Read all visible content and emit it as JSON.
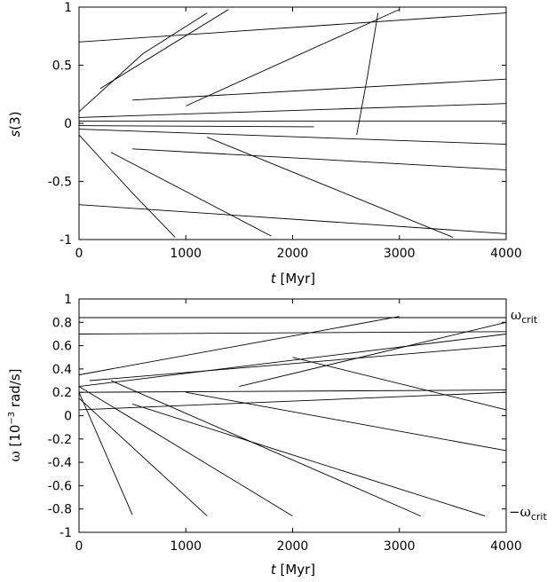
{
  "chart_data": [
    {
      "type": "line",
      "panel": "top",
      "ylabel_italic": "s",
      "ylabel_rest": "(3)",
      "xlabel_italic": "t",
      "xlabel_rest": " [Myr]",
      "xlim": [
        0,
        4000
      ],
      "ylim": [
        -1,
        1
      ],
      "x_ticks": [
        0,
        1000,
        2000,
        3000,
        4000
      ],
      "y_ticks": [
        -1,
        -0.5,
        0,
        0.5,
        1
      ],
      "x_tick_labels": [
        "0",
        "1000",
        "2000",
        "3000",
        "4000"
      ],
      "y_tick_labels": [
        "-1",
        "-0.5",
        "0",
        "0.5",
        "1"
      ],
      "grid": false,
      "legend": "none",
      "line_color": "#000000",
      "series_description": "Many individual black track segments; values drift toward |s(3)| = 1 over time, with a sparse band near s(3) = 0.",
      "series": [
        {
          "values": [
            [
              0,
              0.02
            ],
            [
              4000,
              0.02
            ]
          ]
        },
        {
          "values": [
            [
              0,
              -0.02
            ],
            [
              2200,
              -0.03
            ]
          ]
        },
        {
          "values": [
            [
              0,
              0.05
            ],
            [
              4000,
              0.17
            ]
          ]
        },
        {
          "values": [
            [
              0,
              -0.05
            ],
            [
              4000,
              -0.18
            ]
          ]
        },
        {
          "values": [
            [
              0,
              0.1
            ],
            [
              600,
              0.6
            ],
            [
              1200,
              0.95
            ]
          ]
        },
        {
          "values": [
            [
              0,
              -0.1
            ],
            [
              500,
              -0.6
            ],
            [
              900,
              -0.98
            ]
          ]
        },
        {
          "values": [
            [
              200,
              0.3
            ],
            [
              1400,
              0.98
            ]
          ]
        },
        {
          "values": [
            [
              300,
              -0.25
            ],
            [
              1800,
              -0.97
            ]
          ]
        },
        {
          "values": [
            [
              1000,
              0.15
            ],
            [
              3000,
              0.98
            ]
          ]
        },
        {
          "values": [
            [
              1200,
              -0.12
            ],
            [
              3500,
              -0.98
            ]
          ]
        },
        {
          "values": [
            [
              2600,
              -0.1
            ],
            [
              2700,
              0.4
            ],
            [
              2800,
              0.95
            ]
          ]
        },
        {
          "values": [
            [
              0,
              0.7
            ],
            [
              4000,
              0.95
            ]
          ]
        },
        {
          "values": [
            [
              0,
              -0.7
            ],
            [
              4000,
              -0.95
            ]
          ]
        },
        {
          "values": [
            [
              500,
              0.2
            ],
            [
              4000,
              0.38
            ]
          ]
        },
        {
          "values": [
            [
              500,
              -0.22
            ],
            [
              4000,
              -0.4
            ]
          ]
        }
      ]
    },
    {
      "type": "line",
      "panel": "bottom",
      "ylabel_symbol": "ω",
      "ylabel_pre": " [10",
      "ylabel_sup": "−3",
      "ylabel_post": " rad/s]",
      "xlabel_italic": "t",
      "xlabel_rest": " [Myr]",
      "xlim": [
        0,
        4000
      ],
      "ylim": [
        -1,
        1
      ],
      "x_ticks": [
        0,
        1000,
        2000,
        3000,
        4000
      ],
      "y_ticks": [
        -1,
        -0.8,
        -0.6,
        -0.4,
        -0.2,
        0,
        0.2,
        0.4,
        0.6,
        0.8,
        1
      ],
      "x_tick_labels": [
        "0",
        "1000",
        "2000",
        "3000",
        "4000"
      ],
      "y_tick_labels": [
        "-1",
        "-0.8",
        "-0.6",
        "-0.4",
        "-0.2",
        "0",
        "0.2",
        "0.4",
        "0.6",
        "0.8",
        "1"
      ],
      "grid": false,
      "legend": "none",
      "line_color": "#000000",
      "annotations": [
        {
          "symbol": "ω",
          "sub": "crit",
          "y": 0.86
        },
        {
          "symbol": "−ω",
          "sub": "crit",
          "y": -0.86
        }
      ],
      "series_description": "Many individual black track segments starting near ω ≈ 0.2 at t = 0, spreading between -ω_crit and ω_crit.",
      "series": [
        {
          "values": [
            [
              0,
              0.84
            ],
            [
              4000,
              0.84
            ]
          ]
        },
        {
          "values": [
            [
              0,
              0.2
            ],
            [
              4000,
              0.22
            ]
          ]
        },
        {
          "values": [
            [
              0,
              0.2
            ],
            [
              500,
              -0.85
            ]
          ]
        },
        {
          "values": [
            [
              0,
              0.15
            ],
            [
              1200,
              -0.86
            ]
          ]
        },
        {
          "values": [
            [
              0,
              0.25
            ],
            [
              2000,
              -0.86
            ]
          ]
        },
        {
          "values": [
            [
              300,
              0.3
            ],
            [
              3200,
              -0.86
            ]
          ]
        },
        {
          "values": [
            [
              0,
              0.35
            ],
            [
              3000,
              0.85
            ]
          ]
        },
        {
          "values": [
            [
              0,
              0.25
            ],
            [
              4000,
              0.7
            ]
          ]
        },
        {
          "values": [
            [
              100,
              0.3
            ],
            [
              4000,
              0.6
            ]
          ]
        },
        {
          "values": [
            [
              500,
              0.1
            ],
            [
              3800,
              -0.86
            ]
          ]
        },
        {
          "values": [
            [
              1000,
              0.2
            ],
            [
              4000,
              -0.3
            ]
          ]
        },
        {
          "values": [
            [
              0,
              0.05
            ],
            [
              4000,
              0.2
            ]
          ]
        },
        {
          "values": [
            [
              1500,
              0.25
            ],
            [
              4000,
              0.8
            ]
          ]
        },
        {
          "values": [
            [
              2000,
              0.5
            ],
            [
              4000,
              0.05
            ]
          ]
        },
        {
          "values": [
            [
              0,
              0.7
            ],
            [
              4000,
              0.72
            ]
          ]
        }
      ]
    }
  ]
}
